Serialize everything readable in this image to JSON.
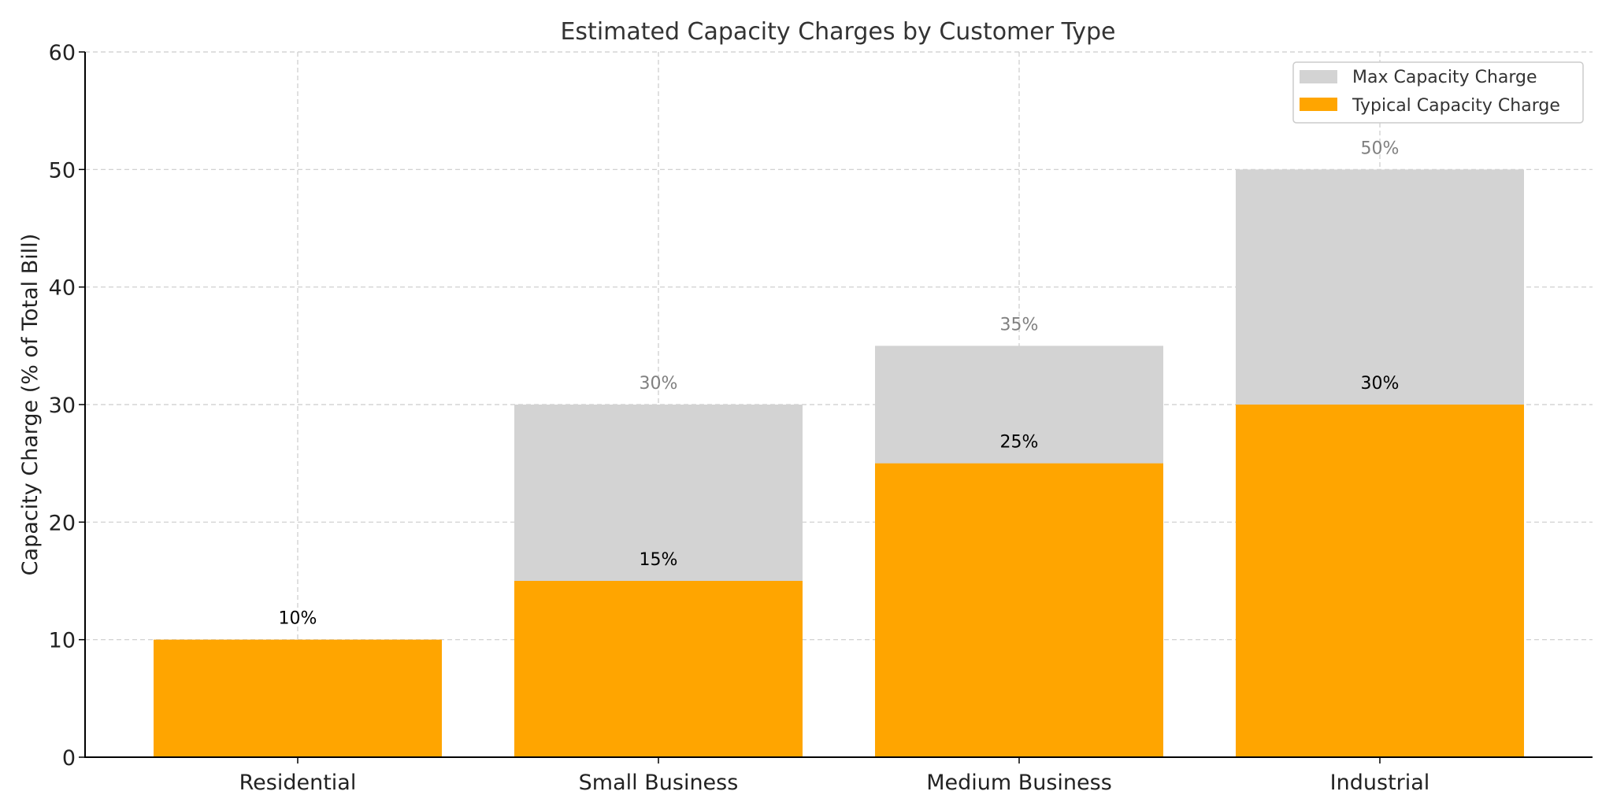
{
  "chart_data": {
    "type": "bar",
    "title": "Estimated Capacity Charges by Customer Type",
    "xlabel": "",
    "ylabel": "Capacity Charge (% of Total Bill)",
    "categories": [
      "Residential",
      "Small Business",
      "Medium Business",
      "Industrial"
    ],
    "ylim": [
      0,
      60
    ],
    "yticks": [
      "0",
      "10",
      "20",
      "30",
      "40",
      "50",
      "60"
    ],
    "grid": true,
    "legend_position": "top-right",
    "series": [
      {
        "name": "Max Capacity Charge",
        "values": [
          10,
          30,
          35,
          50
        ],
        "labels": [
          "",
          "30%",
          "35%",
          "50%"
        ],
        "color": "#d3d3d3",
        "label_color": "#808080"
      },
      {
        "name": "Typical Capacity Charge",
        "values": [
          10,
          15,
          25,
          30
        ],
        "labels": [
          "10%",
          "15%",
          "25%",
          "30%"
        ],
        "color": "#ffa500",
        "label_color": "#000000"
      }
    ]
  }
}
